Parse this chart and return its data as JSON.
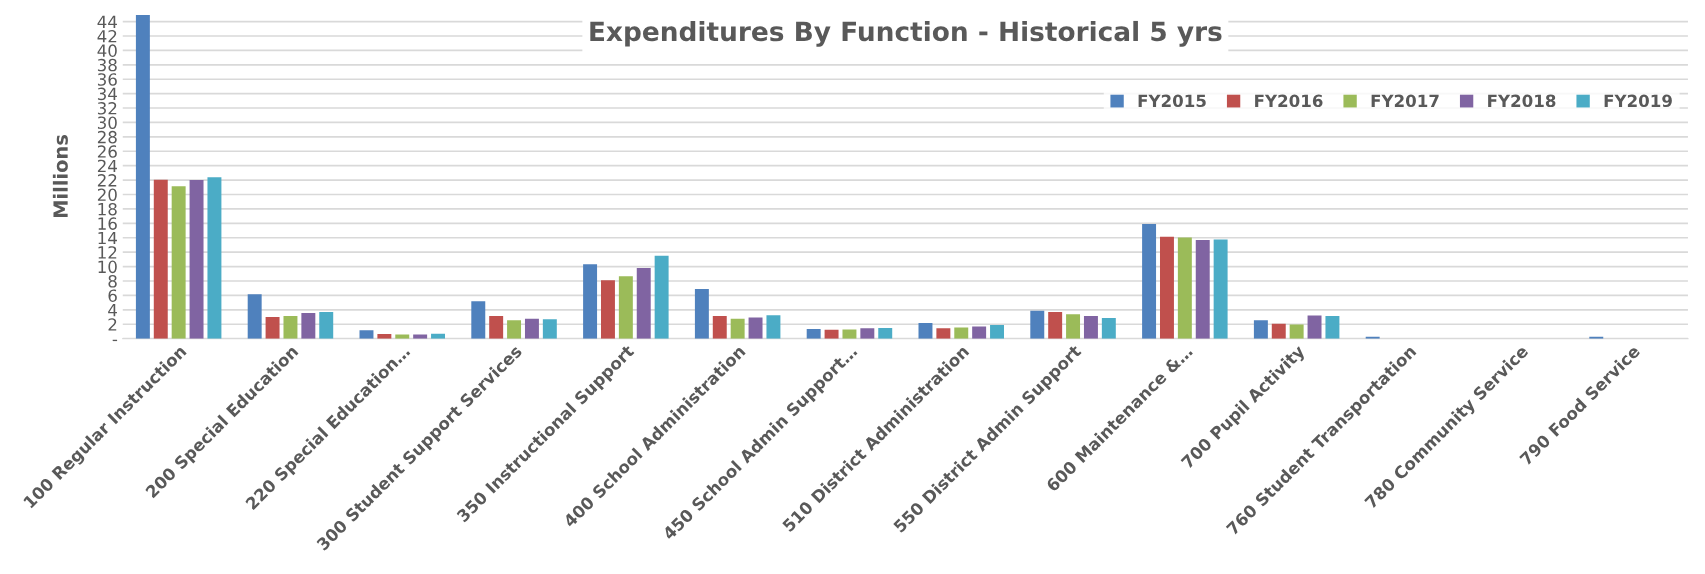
{
  "chart_data": {
    "type": "bar",
    "title": "Expenditures By Function - Historical 5 yrs",
    "ylabel": "Millions",
    "categories": [
      "100 Regular Instruction",
      "200 Special Education",
      "220 Special Education…",
      "300 Student Support Services",
      "350 Instructional Support",
      "400 School Administration",
      "450 School Admin Support…",
      "510 District Administration",
      "550 District Admin Support",
      "600 Maintenance &…",
      "700 Pupil Activity",
      "760 Student Transportation",
      "780 Community Service",
      "790 Food Service"
    ],
    "series": [
      {
        "name": "FY2015",
        "color": "#4f81bd",
        "values": [
          44.9,
          6.15,
          1.17,
          5.2,
          10.34,
          6.9,
          1.33,
          2.18,
          3.87,
          15.9,
          2.56,
          0.27,
          0,
          0.27
        ]
      },
      {
        "name": "FY2016",
        "color": "#c0504d",
        "values": [
          22.06,
          3.02,
          0.64,
          3.13,
          8.12,
          3.13,
          1.22,
          1.43,
          3.71,
          14.13,
          2.08,
          0,
          0,
          0
        ]
      },
      {
        "name": "FY2017",
        "color": "#9bbb59",
        "values": [
          21.16,
          3.13,
          0.58,
          2.55,
          8.65,
          2.76,
          1.27,
          1.54,
          3.4,
          14.03,
          1.97,
          0,
          0,
          0
        ]
      },
      {
        "name": "FY2018",
        "color": "#8064a2",
        "values": [
          22.0,
          3.55,
          0.58,
          2.76,
          9.81,
          2.92,
          1.43,
          1.7,
          3.13,
          13.7,
          3.2,
          0,
          0,
          0
        ]
      },
      {
        "name": "FY2019",
        "color": "#4bacc6",
        "values": [
          22.38,
          3.71,
          0.69,
          2.7,
          11.5,
          3.24,
          1.49,
          1.91,
          2.86,
          13.76,
          3.15,
          0,
          0,
          0
        ]
      }
    ],
    "ylim": [
      0,
      45
    ],
    "yticks": [
      {
        "value": 0,
        "label": "-"
      },
      2,
      4,
      6,
      8,
      10,
      12,
      14,
      16,
      18,
      20,
      22,
      24,
      26,
      28,
      30,
      32,
      34,
      36,
      38,
      40,
      42,
      44
    ],
    "grid": "y",
    "legend": "top right"
  }
}
